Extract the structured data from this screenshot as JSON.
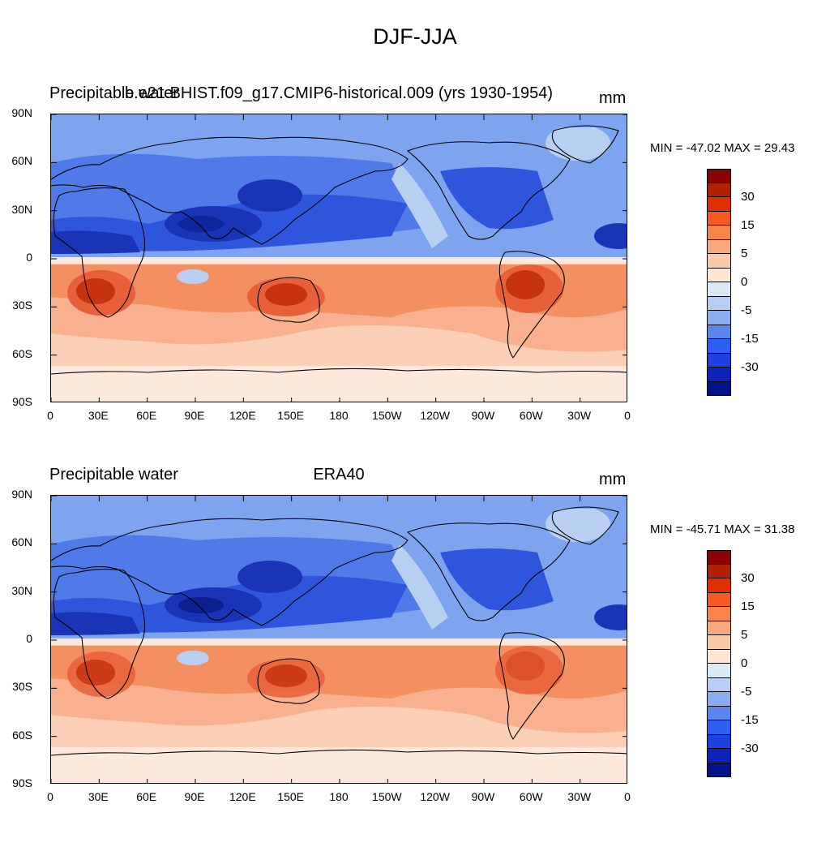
{
  "figure": {
    "title": "DJF-JJA"
  },
  "panels": [
    {
      "left_title": "Precipitable water",
      "center_title": "b.e21.BHIST.f09_g17.CMIP6-historical.009 (yrs 1930-1954)",
      "units": "mm",
      "minmax": "MIN = -47.02 MAX =  29.43"
    },
    {
      "left_title": "Precipitable water",
      "center_title": "ERA40",
      "units": "mm",
      "minmax": "MIN = -45.71 MAX =  31.38"
    }
  ],
  "axes": {
    "lat_labels": [
      "90N",
      "60N",
      "30N",
      "0",
      "30S",
      "60S",
      "90S"
    ],
    "lon_labels": [
      "0",
      "30E",
      "60E",
      "90E",
      "120E",
      "150E",
      "180",
      "150W",
      "120W",
      "90W",
      "60W",
      "30W",
      "0"
    ]
  },
  "colorbar": {
    "labels": [
      "30",
      "15",
      "5",
      "0",
      "-5",
      "-15",
      "-30"
    ],
    "colors": [
      "#8b0000",
      "#b22000",
      "#e03000",
      "#f65a20",
      "#f7844a",
      "#f9a77c",
      "#fbc8a8",
      "#fde6d4",
      "#dbe9f7",
      "#b6cef2",
      "#89aef0",
      "#5a86ee",
      "#2e5ef2",
      "#1f3fe0",
      "#0d22b8",
      "#00148a"
    ]
  },
  "map_colors": {
    "deep_red": "#c8330f",
    "red": "#e8603a",
    "orange": "#f48f62",
    "salmon": "#f9b08e",
    "peach": "#fcd0b6",
    "cream": "#fde9db",
    "light_blue": "#b8cff2",
    "blue": "#7fa4ef",
    "mid_blue": "#4f7ae8",
    "dark_blue": "#2e56dc",
    "navy": "#1a34b8",
    "deep_navy": "#0c1f8f"
  }
}
